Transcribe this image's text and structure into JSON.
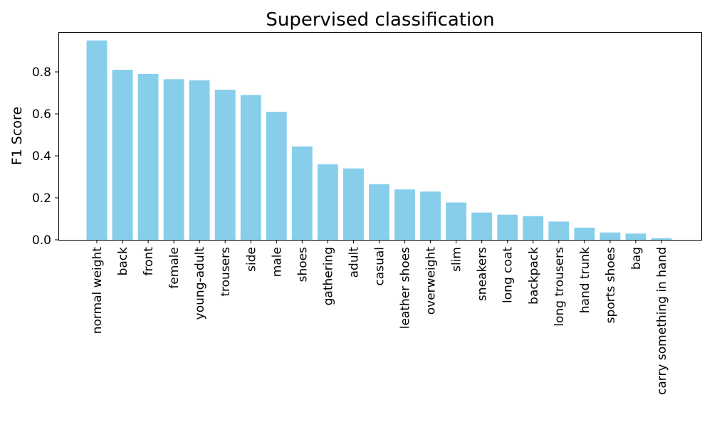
{
  "chart_data": {
    "type": "bar",
    "title": "Supervised classification",
    "xlabel": "",
    "ylabel": "F1 Score",
    "ylim": [
      0,
      0.99
    ],
    "yticks": [
      0.0,
      0.2,
      0.4,
      0.6,
      0.8
    ],
    "grid": false,
    "bar_color": "#87ceeb",
    "categories": [
      "normal weight",
      "back",
      "front",
      "female",
      "young-adult",
      "trousers",
      "side",
      "male",
      "shoes",
      "gathering",
      "adult",
      "casual",
      "leather shoes",
      "overweight",
      "slim",
      "sneakers",
      "long coat",
      "backpack",
      "long trousers",
      "hand trunk",
      "sports shoes",
      "bag",
      "carry something in hand"
    ],
    "values": [
      0.95,
      0.81,
      0.79,
      0.765,
      0.76,
      0.715,
      0.69,
      0.61,
      0.445,
      0.36,
      0.34,
      0.265,
      0.24,
      0.23,
      0.178,
      0.13,
      0.12,
      0.113,
      0.087,
      0.058,
      0.035,
      0.03,
      0.008
    ]
  }
}
